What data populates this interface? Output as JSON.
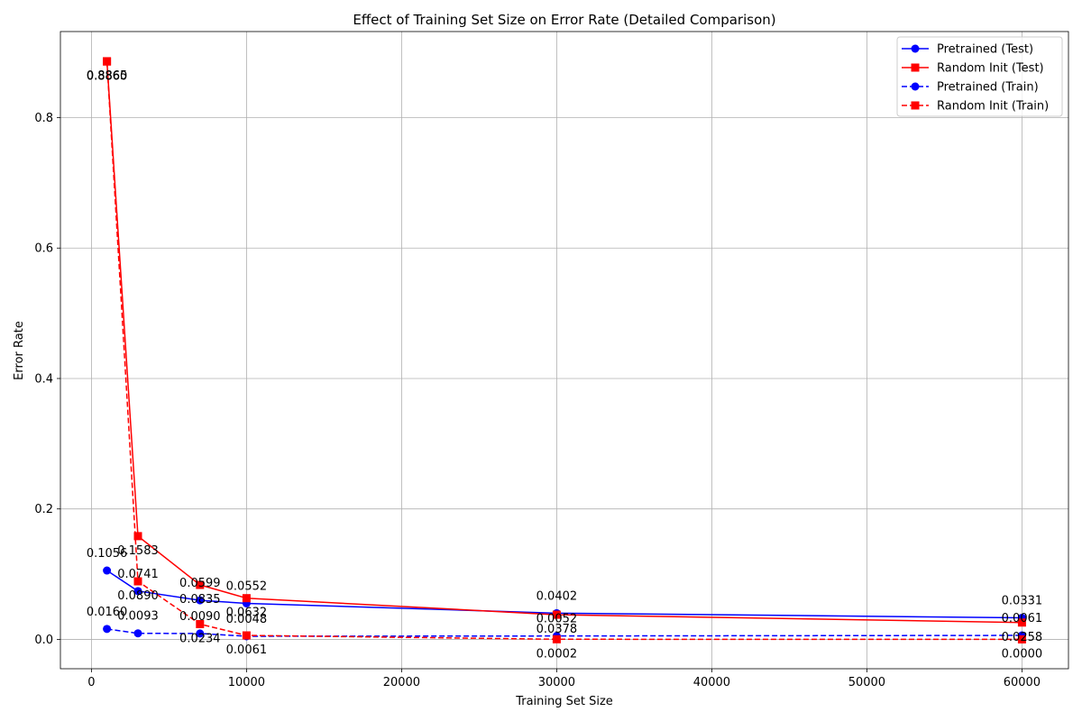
{
  "chart_data": {
    "type": "line",
    "title": "Effect of Training Set Size on Error Rate (Detailed Comparison)",
    "xlabel": "Training Set Size",
    "ylabel": "Error Rate",
    "xlim": [
      -2000,
      63000
    ],
    "ylim": [
      -0.045,
      0.932
    ],
    "grid": true,
    "legend_position": "top-right",
    "x": [
      1000,
      3000,
      7000,
      10000,
      30000,
      60000
    ],
    "xticks": [
      0,
      10000,
      20000,
      30000,
      40000,
      50000,
      60000
    ],
    "xtick_labels": [
      "0",
      "10000",
      "20000",
      "30000",
      "40000",
      "50000",
      "60000"
    ],
    "yticks": [
      0.0,
      0.2,
      0.4,
      0.6,
      0.8
    ],
    "ytick_labels": [
      "0.0",
      "0.2",
      "0.4",
      "0.6",
      "0.8"
    ],
    "series": [
      {
        "name": "Pretrained (Test)",
        "color": "#0000ff",
        "linestyle": "solid",
        "marker": "circle",
        "values": [
          0.1056,
          0.0741,
          0.0599,
          0.0552,
          0.0402,
          0.0331
        ],
        "labels": [
          "0.1056",
          "0.0741",
          "0.0599",
          "0.0552",
          "0.0402",
          "0.0331"
        ],
        "label_offset": "above"
      },
      {
        "name": "Random Init (Test)",
        "color": "#ff0000",
        "linestyle": "solid",
        "marker": "square",
        "values": [
          0.8865,
          0.1583,
          0.0835,
          0.0632,
          0.0378,
          0.0258
        ],
        "labels": [
          "0.8865",
          "0.1583",
          "0.0835",
          "0.0632",
          "0.0378",
          "0.0258"
        ],
        "label_offset": "below"
      },
      {
        "name": "Pretrained (Train)",
        "color": "#0000ff",
        "linestyle": "dashed",
        "marker": "circle",
        "values": [
          0.016,
          0.0093,
          0.009,
          0.0048,
          0.0052,
          0.0061
        ],
        "labels": [
          "0.0160",
          "0.0093",
          "0.0090",
          "0.0048",
          "0.0052",
          "0.0061"
        ],
        "label_offset": "above"
      },
      {
        "name": "Random Init (Train)",
        "color": "#ff0000",
        "linestyle": "dashed",
        "marker": "square",
        "values": [
          0.886,
          0.089,
          0.0234,
          0.0061,
          0.0002,
          0.0
        ],
        "labels": [
          "0.8860",
          "0.0890",
          "0.0234",
          "0.0061",
          "0.0002",
          "0.0000"
        ],
        "label_offset": "below"
      }
    ]
  }
}
